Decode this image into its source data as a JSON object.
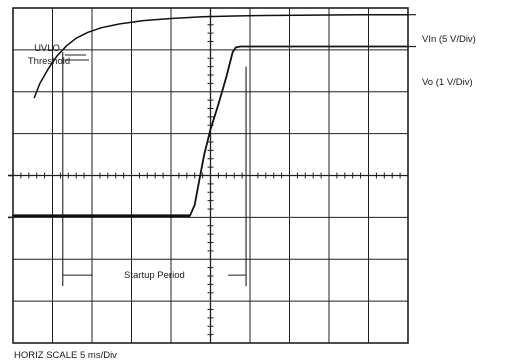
{
  "chart_data": {
    "type": "line",
    "x_scale_label": "HORIZ SCALE 5 ms/Div",
    "grid": true,
    "divisions": {
      "x": 10,
      "y": 8
    },
    "x_unit": "ms",
    "x_per_div": 5,
    "x_range": [
      0,
      50
    ],
    "y_range_div": [
      -4,
      4
    ],
    "series": [
      {
        "name": "VIn (5 V/Div)",
        "x": [
          2.7,
          3.4,
          4.5,
          5.6,
          6.8,
          8.0,
          9.5,
          11.2,
          13.5,
          16.5,
          20.0,
          24.0,
          28.0,
          32.0,
          38.0,
          44.0,
          50.0
        ],
        "y_div": [
          1.86,
          2.2,
          2.56,
          2.86,
          3.1,
          3.28,
          3.42,
          3.53,
          3.62,
          3.7,
          3.75,
          3.79,
          3.81,
          3.82,
          3.83,
          3.84,
          3.84
        ]
      },
      {
        "name": "Vo (1 V/Div)",
        "x": [
          0.0,
          22.4,
          23.0,
          23.6,
          24.2,
          25.0,
          26.0,
          27.0,
          27.8,
          28.2,
          28.8,
          50.0
        ],
        "y_div": [
          -0.96,
          -0.96,
          -0.7,
          -0.1,
          0.5,
          1.1,
          1.7,
          2.35,
          2.94,
          3.06,
          3.08,
          3.08
        ]
      }
    ],
    "annotations": {
      "uvlo": {
        "label_line1": "UVLO",
        "label_line2": "Threshold",
        "x": 6.3
      },
      "startup": {
        "label": "Startup Period",
        "x_start": 6.3,
        "x_end": 29.5,
        "y_div": -2.38
      }
    }
  }
}
